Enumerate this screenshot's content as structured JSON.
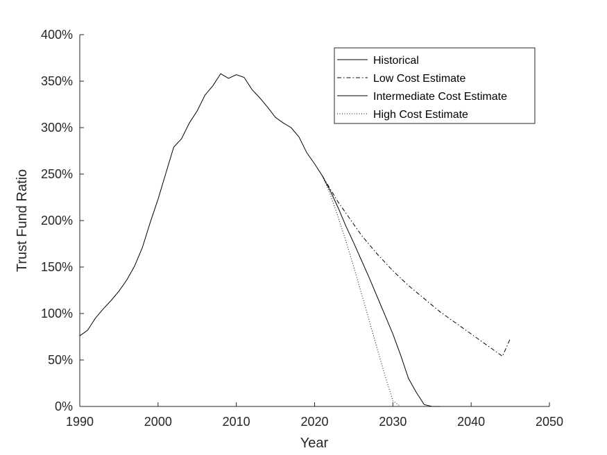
{
  "chart_data": {
    "type": "line",
    "xlabel": "Year",
    "ylabel": "Trust Fund Ratio",
    "xlim": [
      1990,
      2050
    ],
    "ylim": [
      0,
      400
    ],
    "x_ticks": [
      1990,
      2000,
      2010,
      2020,
      2030,
      2040,
      2050
    ],
    "x_tick_labels": [
      "1990",
      "2000",
      "2010",
      "2020",
      "2030",
      "2040",
      "2050"
    ],
    "y_ticks": [
      0,
      50,
      100,
      150,
      200,
      250,
      300,
      350,
      400
    ],
    "y_tick_labels": [
      "0%",
      "50%",
      "100%",
      "150%",
      "200%",
      "250%",
      "300%",
      "350%",
      "400%"
    ],
    "grid": false,
    "legend_position": "top-right",
    "series": [
      {
        "name": "Historical",
        "style": "solid",
        "color": "#000000",
        "points": [
          [
            1990,
            76
          ],
          [
            1991,
            82
          ],
          [
            1992,
            95
          ],
          [
            1993,
            105
          ],
          [
            1994,
            114
          ],
          [
            1995,
            124
          ],
          [
            1996,
            136
          ],
          [
            1997,
            151
          ],
          [
            1998,
            171
          ],
          [
            1999,
            198
          ],
          [
            2000,
            223
          ],
          [
            2001,
            251
          ],
          [
            2002,
            279
          ],
          [
            2003,
            288
          ],
          [
            2004,
            305
          ],
          [
            2005,
            318
          ],
          [
            2006,
            335
          ],
          [
            2007,
            345
          ],
          [
            2008,
            358
          ],
          [
            2009,
            353
          ],
          [
            2010,
            357
          ],
          [
            2011,
            354
          ],
          [
            2012,
            341
          ],
          [
            2013,
            332
          ],
          [
            2014,
            322
          ],
          [
            2015,
            311
          ],
          [
            2016,
            305
          ],
          [
            2017,
            300
          ],
          [
            2018,
            290
          ],
          [
            2019,
            273
          ],
          [
            2020,
            261
          ],
          [
            2021,
            248
          ]
        ]
      },
      {
        "name": "Low Cost Estimate",
        "style": "dashdot",
        "color": "#000000",
        "points": [
          [
            2021,
            248
          ],
          [
            2022,
            234
          ],
          [
            2023,
            220
          ],
          [
            2024,
            208
          ],
          [
            2025,
            196
          ],
          [
            2026,
            184
          ],
          [
            2027,
            174
          ],
          [
            2028,
            164
          ],
          [
            2029,
            155
          ],
          [
            2030,
            146
          ],
          [
            2031,
            138
          ],
          [
            2032,
            130
          ],
          [
            2033,
            123
          ],
          [
            2034,
            116
          ],
          [
            2035,
            109
          ],
          [
            2036,
            102
          ],
          [
            2037,
            96
          ],
          [
            2038,
            90
          ],
          [
            2039,
            84
          ],
          [
            2040,
            78
          ],
          [
            2041,
            72
          ],
          [
            2042,
            66
          ],
          [
            2043,
            60
          ],
          [
            2044,
            54
          ],
          [
            2045,
            73
          ]
        ]
      },
      {
        "name": "Intermediate Cost Estimate",
        "style": "solid",
        "color": "#000000",
        "points": [
          [
            2021,
            248
          ],
          [
            2022,
            232
          ],
          [
            2023,
            214
          ],
          [
            2024,
            194
          ],
          [
            2025,
            176
          ],
          [
            2026,
            157
          ],
          [
            2027,
            138
          ],
          [
            2028,
            118
          ],
          [
            2029,
            98
          ],
          [
            2030,
            78
          ],
          [
            2031,
            55
          ],
          [
            2032,
            30
          ],
          [
            2033,
            15
          ],
          [
            2034,
            2
          ],
          [
            2035,
            0
          ],
          [
            2036,
            0
          ]
        ]
      },
      {
        "name": "High Cost Estimate",
        "style": "dotted",
        "color": "#000000",
        "points": [
          [
            2021,
            248
          ],
          [
            2022,
            228
          ],
          [
            2023,
            204
          ],
          [
            2024,
            178
          ],
          [
            2025,
            150
          ],
          [
            2026,
            121
          ],
          [
            2027,
            92
          ],
          [
            2028,
            62
          ],
          [
            2029,
            33
          ],
          [
            2030,
            6
          ],
          [
            2031,
            0
          ]
        ]
      }
    ]
  }
}
